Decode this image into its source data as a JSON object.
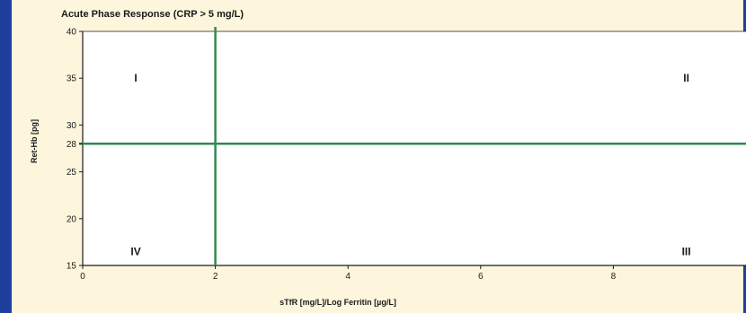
{
  "colors": {
    "page_background": "#fdf6dc",
    "border": "#1f3f9e",
    "plot_background": "#ffffff",
    "threshold_line": "#2e8b4e",
    "axis": "#1a1a1a"
  },
  "chart_data": {
    "type": "scatter",
    "title": "Acute Phase Response (CRP > 5 mg/L)",
    "xlabel": "sTfR [mg/L]/Log Ferritin [µg/L]",
    "ylabel": "Ret-Hb [pg]",
    "xlim": [
      0,
      10
    ],
    "ylim": [
      15,
      40
    ],
    "x_ticks": [
      0,
      2,
      4,
      6,
      8
    ],
    "y_ticks": [
      15,
      20,
      25,
      28,
      30,
      35,
      40
    ],
    "grid": false,
    "reference_lines": [
      {
        "orientation": "vertical",
        "x": 2
      },
      {
        "orientation": "horizontal",
        "y": 28
      }
    ],
    "quadrant_labels": [
      {
        "text": "I",
        "x": 0.8,
        "y": 35
      },
      {
        "text": "II",
        "x": 9.1,
        "y": 35
      },
      {
        "text": "III",
        "x": 9.1,
        "y": 16.5
      },
      {
        "text": "IV",
        "x": 0.8,
        "y": 16.5
      }
    ]
  }
}
